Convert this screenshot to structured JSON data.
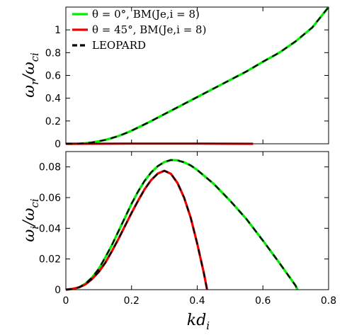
{
  "chart_data": [
    {
      "type": "line",
      "panel": "top",
      "ylabel": "ωr/ωci",
      "xlim": [
        0,
        0.8
      ],
      "ylim": [
        0,
        1.2
      ],
      "xticks": [
        0,
        0.2,
        0.4,
        0.6,
        0.8
      ],
      "xtick_labels": [
        "",
        "",
        "",
        "",
        ""
      ],
      "yticks": [
        0,
        0.2,
        0.4,
        0.6,
        0.8,
        1
      ],
      "ytick_labels": [
        "0",
        "0.2",
        "0.4",
        "0.6",
        "0.8",
        "1"
      ],
      "legend": {
        "placement": "top-left",
        "entries": [
          {
            "label": "θ = 0°, BM(Je,i = 8)",
            "color": "#00ee00",
            "style": "solid"
          },
          {
            "label": "θ = 45°, BM(Je,i = 8)",
            "color": "#ee0000",
            "style": "solid"
          },
          {
            "label": "LEOPARD",
            "color": "#000000",
            "style": "dashed"
          }
        ]
      },
      "series": [
        {
          "name": "θ = 0°, BM(Je,i = 8)",
          "color": "#00ee00",
          "x": [
            0.0,
            0.02,
            0.04,
            0.06,
            0.08,
            0.1,
            0.12,
            0.14,
            0.16,
            0.18,
            0.2,
            0.25,
            0.3,
            0.35,
            0.4,
            0.45,
            0.5,
            0.55,
            0.6,
            0.65,
            0.7,
            0.75,
            0.8
          ],
          "y": [
            0.0,
            0.0,
            0.001,
            0.005,
            0.012,
            0.022,
            0.034,
            0.05,
            0.068,
            0.09,
            0.115,
            0.185,
            0.26,
            0.335,
            0.41,
            0.485,
            0.56,
            0.635,
            0.72,
            0.8,
            0.9,
            1.02,
            1.2
          ]
        },
        {
          "name": "θ = 45°, BM(Je,i = 8)",
          "color": "#ee0000",
          "x": [
            0.0,
            0.1,
            0.2,
            0.3,
            0.4,
            0.5,
            0.57
          ],
          "y": [
            0.0,
            0.001,
            0.002,
            0.002,
            0.002,
            0.001,
            0.0
          ]
        },
        {
          "name": "LEOPARD",
          "color": "#000000",
          "dashed": true,
          "segments": [
            {
              "x": [
                0.0,
                0.02,
                0.04,
                0.06,
                0.08,
                0.1,
                0.12,
                0.14,
                0.16,
                0.18,
                0.2,
                0.25,
                0.3,
                0.35,
                0.4,
                0.45,
                0.5,
                0.55,
                0.6,
                0.65,
                0.7,
                0.75,
                0.8
              ],
              "y": [
                0.0,
                0.0,
                0.001,
                0.005,
                0.012,
                0.022,
                0.034,
                0.05,
                0.068,
                0.09,
                0.115,
                0.185,
                0.26,
                0.335,
                0.41,
                0.485,
                0.56,
                0.635,
                0.72,
                0.8,
                0.9,
                1.02,
                1.2
              ]
            }
          ]
        }
      ]
    },
    {
      "type": "line",
      "panel": "bottom",
      "xlabel": "kdi",
      "ylabel": "ωi/ωci",
      "xlim": [
        0,
        0.8
      ],
      "ylim": [
        0,
        0.09
      ],
      "xticks": [
        0,
        0.2,
        0.4,
        0.6,
        0.8
      ],
      "xtick_labels": [
        "0",
        "0.2",
        "0.4",
        "0.6",
        "0.8"
      ],
      "yticks": [
        0,
        0.02,
        0.04,
        0.06,
        0.08
      ],
      "ytick_labels": [
        "0",
        "0.02",
        "0.04",
        "0.06",
        "0.08"
      ],
      "series": [
        {
          "name": "θ = 0°, BM(Je,i = 8)",
          "color": "#00ee00",
          "x": [
            0.0,
            0.02,
            0.04,
            0.06,
            0.08,
            0.1,
            0.12,
            0.14,
            0.16,
            0.18,
            0.2,
            0.22,
            0.24,
            0.26,
            0.28,
            0.3,
            0.32,
            0.34,
            0.36,
            0.38,
            0.4,
            0.45,
            0.5,
            0.55,
            0.6,
            0.65,
            0.7,
            0.705
          ],
          "y": [
            0.0,
            0.0005,
            0.0015,
            0.004,
            0.008,
            0.0135,
            0.021,
            0.029,
            0.038,
            0.047,
            0.056,
            0.064,
            0.071,
            0.0765,
            0.0805,
            0.0832,
            0.0845,
            0.0843,
            0.083,
            0.081,
            0.078,
            0.069,
            0.058,
            0.046,
            0.032,
            0.0175,
            0.0025,
            0.0
          ]
        },
        {
          "name": "θ = 45°, BM(Je,i = 8)",
          "color": "#ee0000",
          "x": [
            0.0,
            0.02,
            0.04,
            0.06,
            0.08,
            0.1,
            0.12,
            0.14,
            0.16,
            0.18,
            0.2,
            0.22,
            0.24,
            0.26,
            0.28,
            0.3,
            0.32,
            0.34,
            0.36,
            0.38,
            0.4,
            0.42,
            0.43
          ],
          "y": [
            0.0,
            0.0005,
            0.0015,
            0.0035,
            0.007,
            0.0115,
            0.0175,
            0.025,
            0.033,
            0.0415,
            0.05,
            0.058,
            0.0655,
            0.0715,
            0.0757,
            0.0775,
            0.0755,
            0.0695,
            0.06,
            0.047,
            0.03,
            0.011,
            0.0
          ]
        },
        {
          "name": "LEOPARD",
          "color": "#000000",
          "dashed": true,
          "segments": [
            {
              "x": [
                0.0,
                0.02,
                0.04,
                0.06,
                0.08,
                0.1,
                0.12,
                0.14,
                0.16,
                0.18,
                0.2,
                0.22,
                0.24,
                0.26,
                0.28,
                0.3,
                0.32,
                0.34,
                0.36,
                0.38,
                0.4,
                0.45,
                0.5,
                0.55,
                0.6,
                0.65,
                0.7,
                0.705
              ],
              "y": [
                0.0,
                0.0005,
                0.0015,
                0.004,
                0.008,
                0.0135,
                0.021,
                0.029,
                0.038,
                0.047,
                0.056,
                0.064,
                0.071,
                0.0765,
                0.0805,
                0.0832,
                0.0845,
                0.0843,
                0.083,
                0.081,
                0.078,
                0.069,
                0.058,
                0.046,
                0.032,
                0.0175,
                0.0025,
                0.0
              ]
            },
            {
              "x": [
                0.0,
                0.02,
                0.04,
                0.06,
                0.08,
                0.1,
                0.12,
                0.14,
                0.16,
                0.18,
                0.2,
                0.22,
                0.24,
                0.26,
                0.28,
                0.3,
                0.32,
                0.34,
                0.36,
                0.38,
                0.4,
                0.42,
                0.43
              ],
              "y": [
                0.0,
                0.0005,
                0.0015,
                0.0035,
                0.007,
                0.0115,
                0.0175,
                0.025,
                0.033,
                0.0415,
                0.05,
                0.058,
                0.0655,
                0.0715,
                0.0757,
                0.0775,
                0.0755,
                0.0695,
                0.06,
                0.047,
                0.03,
                0.011,
                0.0
              ]
            }
          ]
        }
      ]
    }
  ]
}
